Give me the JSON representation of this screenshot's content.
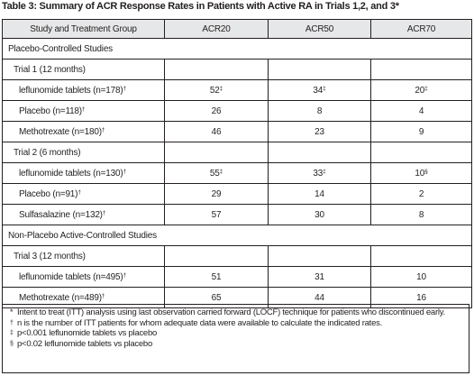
{
  "caption": "Table 3: Summary of ACR Response Rates in Patients with Active RA in Trials 1,2, and 3*",
  "headers": [
    "Study and Treatment Group",
    "ACR20",
    "ACR50",
    "ACR70"
  ],
  "rows": [
    {
      "kind": "group",
      "label": "Placebo-Controlled Studies"
    },
    {
      "kind": "trial",
      "label": "Trial 1 (12 months)"
    },
    {
      "kind": "treatment",
      "label": "leflunomide tablets (n=178)",
      "label_sup": "†",
      "acr20": "52",
      "acr20_sup": "‡",
      "acr50": "34",
      "acr50_sup": "‡",
      "acr70": "20",
      "acr70_sup": "‡"
    },
    {
      "kind": "treatment",
      "label": "Placebo (n=118)",
      "label_sup": "†",
      "acr20": "26",
      "acr20_sup": "",
      "acr50": "8",
      "acr50_sup": "",
      "acr70": "4",
      "acr70_sup": ""
    },
    {
      "kind": "treatment",
      "label": "Methotrexate (n=180)",
      "label_sup": "†",
      "acr20": "46",
      "acr20_sup": "",
      "acr50": "23",
      "acr50_sup": "",
      "acr70": "9",
      "acr70_sup": ""
    },
    {
      "kind": "trial",
      "label": "Trial 2 (6 months)"
    },
    {
      "kind": "treatment",
      "label": "leflunomide tablets (n=130)",
      "label_sup": "†",
      "acr20": "55",
      "acr20_sup": "‡",
      "acr50": "33",
      "acr50_sup": "‡",
      "acr70": "10",
      "acr70_sup": "§"
    },
    {
      "kind": "treatment",
      "label": "Placebo (n=91)",
      "label_sup": "†",
      "acr20": "29",
      "acr20_sup": "",
      "acr50": "14",
      "acr50_sup": "",
      "acr70": "2",
      "acr70_sup": ""
    },
    {
      "kind": "treatment",
      "label": "Sulfasalazine (n=132)",
      "label_sup": "†",
      "acr20": "57",
      "acr20_sup": "",
      "acr50": "30",
      "acr50_sup": "",
      "acr70": "8",
      "acr70_sup": ""
    },
    {
      "kind": "group",
      "label": "Non-Placebo Active-Controlled Studies"
    },
    {
      "kind": "trial",
      "label": "Trial 3 (12 months)"
    },
    {
      "kind": "treatment",
      "label": "leflunomide tablets (n=495)",
      "label_sup": "†",
      "acr20": "51",
      "acr20_sup": "",
      "acr50": "31",
      "acr50_sup": "",
      "acr70": "10",
      "acr70_sup": ""
    },
    {
      "kind": "treatment",
      "label": "Methotrexate (n=489)",
      "label_sup": "†",
      "acr20": "65",
      "acr20_sup": "",
      "acr50": "44",
      "acr50_sup": "",
      "acr70": "16",
      "acr70_sup": ""
    }
  ],
  "footnotes": [
    {
      "symbol": "*",
      "text": "Intent to treat (ITT) analysis using last observation carried forward (LOCF) technique for patients who discontinued early."
    },
    {
      "symbol": "†",
      "text": "n is the number of ITT patients for whom adequate data were available to calculate the indicated rates."
    },
    {
      "symbol": "‡",
      "text": "p<0.001 leflunomide tablets vs placebo"
    },
    {
      "symbol": "§",
      "text": "p<0.02 leflunomide tablets vs placebo"
    }
  ]
}
